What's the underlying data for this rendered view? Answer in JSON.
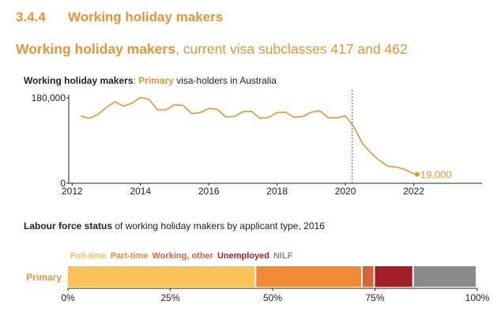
{
  "section": {
    "number": "3.4.4",
    "title": "Working holiday makers"
  },
  "page_title": {
    "strong": "Working holiday makers",
    "rest": ", current visa subclasses 417 and 462"
  },
  "colors": {
    "accent": "#e0963a",
    "full_time": "#fcc25a",
    "part_time": "#f08a34",
    "working_other": "#d5643a",
    "unemployed": "#a21f2a",
    "nilf": "#8a8a8a"
  },
  "chart_data": [
    {
      "type": "line",
      "title_parts": {
        "bold": "Working holiday makers",
        "colon": ": ",
        "series": "Primary",
        "rest": " visa-holders in Australia"
      },
      "x_ticks": [
        2012,
        2014,
        2016,
        2018,
        2020,
        2022
      ],
      "x_tick_labels": [
        "2012",
        "2014",
        "2016",
        "2018",
        "2020",
        "2022"
      ],
      "y_ticks": [
        0,
        180000
      ],
      "y_tick_labels": [
        "0",
        "180,000"
      ],
      "ylim": [
        0,
        180000
      ],
      "xlim": [
        2011.9,
        2024
      ],
      "vline_x": 2020.2,
      "end_label": "19,000",
      "x": [
        2012.25,
        2012.5,
        2012.75,
        2013.0,
        2013.25,
        2013.5,
        2013.75,
        2014.0,
        2014.25,
        2014.5,
        2014.75,
        2015.0,
        2015.25,
        2015.5,
        2015.75,
        2016.0,
        2016.25,
        2016.5,
        2016.75,
        2017.0,
        2017.25,
        2017.5,
        2017.75,
        2018.0,
        2018.25,
        2018.5,
        2018.75,
        2019.0,
        2019.25,
        2019.5,
        2019.75,
        2020.0,
        2020.25,
        2020.5,
        2020.75,
        2021.0,
        2021.25,
        2021.5,
        2021.75,
        2022.0,
        2022.1
      ],
      "y": [
        142000,
        137000,
        145000,
        160000,
        172000,
        163000,
        169000,
        181000,
        177000,
        155000,
        155000,
        166000,
        164000,
        147000,
        149000,
        158000,
        156000,
        140000,
        141000,
        151000,
        152000,
        137000,
        139000,
        149000,
        150000,
        139000,
        141000,
        150000,
        153000,
        138000,
        138000,
        142000,
        119000,
        84000,
        64000,
        48000,
        36000,
        34000,
        29000,
        20000,
        19000
      ]
    },
    {
      "type": "bar",
      "orientation": "horizontal-stacked",
      "title_parts": {
        "bold": "Labour force status",
        "rest": " of working holiday makers by applicant type, 2016"
      },
      "categories": [
        "Primary"
      ],
      "series": [
        {
          "name": "Full-time",
          "values": [
            46
          ]
        },
        {
          "name": "Part-time",
          "values": [
            26
          ]
        },
        {
          "name": "Working, other",
          "values": [
            3
          ]
        },
        {
          "name": "Unemployed",
          "values": [
            9.5
          ]
        },
        {
          "name": "NILF",
          "values": [
            15.5
          ]
        }
      ],
      "x_ticks": [
        0,
        25,
        50,
        75,
        100
      ],
      "x_tick_labels": [
        "0%",
        "25%",
        "50%",
        "75%",
        "100%"
      ],
      "xlim": [
        0,
        100
      ]
    }
  ]
}
